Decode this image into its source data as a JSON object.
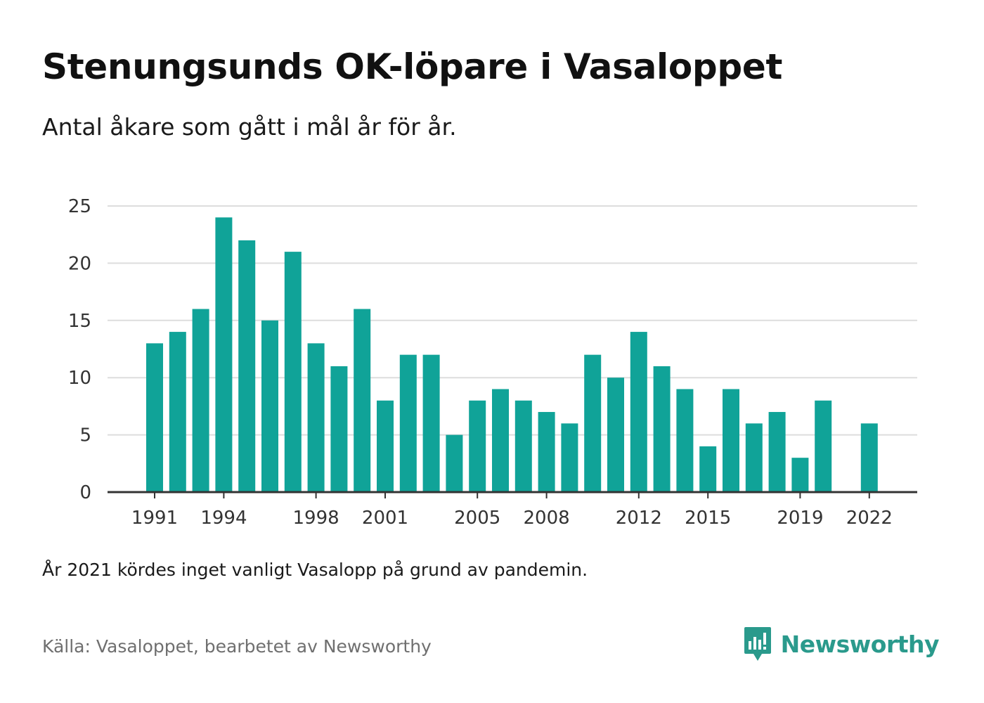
{
  "title": "Stenungsunds OK-löpare i Vasaloppet",
  "subtitle": "Antal åkare som gått i mål år för år.",
  "note": "År 2021 kördes inget vanligt Vasalopp på grund av pandemin.",
  "source": "Källa: Vasaloppet, bearbetet av Newsworthy",
  "brand": {
    "name": "Newsworthy",
    "icon": "newsworthy-logo-icon",
    "color": "#2a9a8c"
  },
  "chart_data": {
    "type": "bar",
    "categories": [
      1991,
      1992,
      1993,
      1994,
      1995,
      1996,
      1997,
      1998,
      1999,
      2000,
      2001,
      2002,
      2003,
      2004,
      2005,
      2006,
      2007,
      2008,
      2009,
      2010,
      2011,
      2012,
      2013,
      2014,
      2015,
      2016,
      2017,
      2018,
      2019,
      2020,
      2021,
      2022
    ],
    "values": [
      13,
      14,
      16,
      24,
      22,
      15,
      21,
      13,
      11,
      16,
      8,
      12,
      12,
      5,
      8,
      9,
      8,
      7,
      6,
      12,
      10,
      14,
      11,
      9,
      4,
      9,
      6,
      7,
      3,
      8,
      null,
      6
    ],
    "x_tick_labels": [
      "1991",
      "1994",
      "1998",
      "2001",
      "2005",
      "2008",
      "2012",
      "2015",
      "2019",
      "2022"
    ],
    "y_ticks": [
      0,
      5,
      10,
      15,
      20,
      25
    ],
    "ylim": [
      0,
      25
    ],
    "grid": true,
    "bar_color": "#10a398",
    "grid_color": "#dddddd",
    "axis_color": "#333333"
  }
}
